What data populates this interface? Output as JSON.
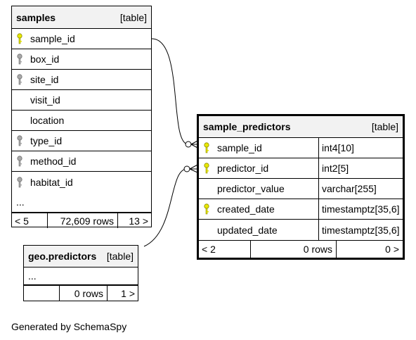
{
  "samples": {
    "name": "samples",
    "kind": "[table]",
    "columns": [
      {
        "name": "sample_id",
        "key": "primary"
      },
      {
        "name": "box_id",
        "key": "foreign"
      },
      {
        "name": "site_id",
        "key": "foreign"
      },
      {
        "name": "visit_id",
        "key": "none"
      },
      {
        "name": "location",
        "key": "none"
      },
      {
        "name": "type_id",
        "key": "foreign"
      },
      {
        "name": "method_id",
        "key": "foreign"
      },
      {
        "name": "habitat_id",
        "key": "foreign"
      }
    ],
    "ellipsis": "...",
    "footer": {
      "left": "< 5",
      "rows": "72,609 rows",
      "right": "13 >"
    }
  },
  "sample_predictors": {
    "name": "sample_predictors",
    "kind": "[table]",
    "columns": [
      {
        "name": "sample_id",
        "type": "int4[10]",
        "key": "primary"
      },
      {
        "name": "predictor_id",
        "type": "int2[5]",
        "key": "primary"
      },
      {
        "name": "predictor_value",
        "type": "varchar[255]",
        "key": "none"
      },
      {
        "name": "created_date",
        "type": "timestamptz[35,6]",
        "key": "primary"
      },
      {
        "name": "updated_date",
        "type": "timestamptz[35,6]",
        "key": "none"
      }
    ],
    "footer": {
      "left": "< 2",
      "rows": "0 rows",
      "right": "0 >"
    }
  },
  "geo_predictors": {
    "name": "geo.predictors",
    "kind": "[table]",
    "ellipsis": "...",
    "footer": {
      "left": "",
      "rows": "0 rows",
      "right": "1 >"
    }
  },
  "credit": "Generated by SchemaSpy",
  "colors": {
    "primary_key": "#e8e800",
    "foreign_key": "#a9a9a9",
    "header_bg": "#f2f2f2"
  }
}
